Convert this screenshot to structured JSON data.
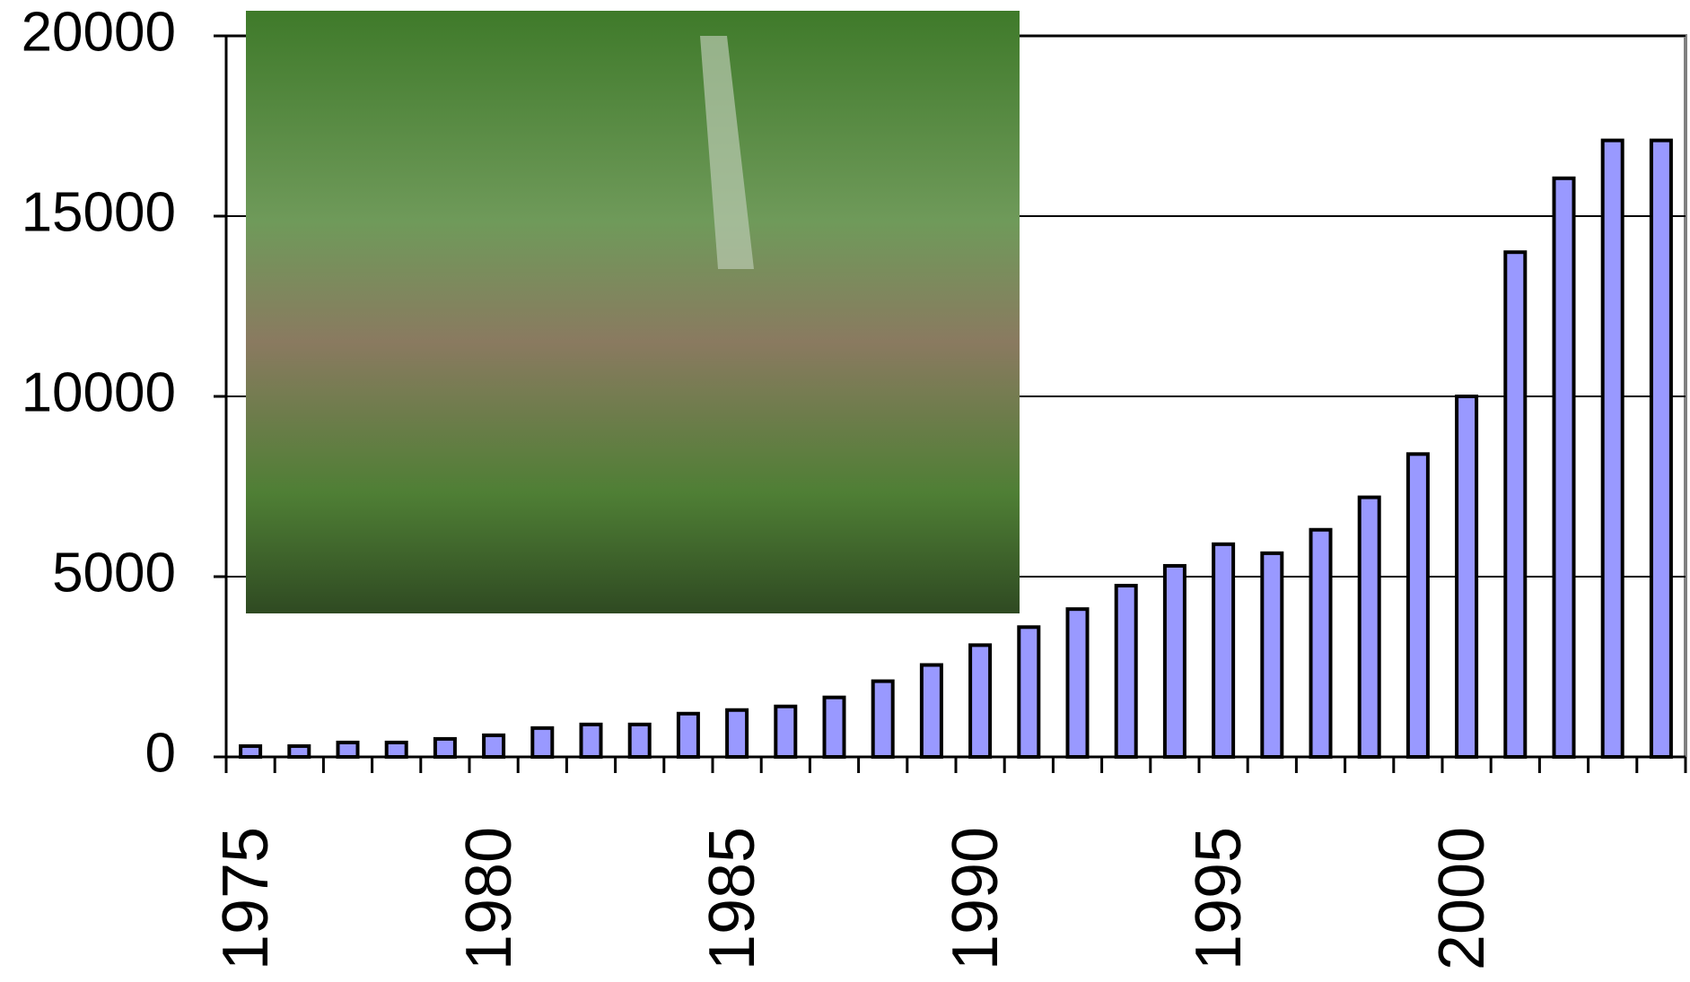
{
  "chart_data": {
    "type": "bar",
    "categories": [
      "1975",
      null,
      null,
      null,
      null,
      "1980",
      null,
      null,
      null,
      null,
      "1985",
      null,
      null,
      null,
      null,
      "1990",
      null,
      null,
      null,
      null,
      "1995",
      null,
      null,
      null,
      null,
      "2000",
      null,
      null,
      null,
      null
    ],
    "values": [
      300,
      300,
      400,
      400,
      500,
      600,
      800,
      900,
      900,
      1200,
      1300,
      1400,
      1650,
      2100,
      2550,
      3100,
      3600,
      4100,
      4750,
      5300,
      5900,
      5650,
      6300,
      7200,
      8400,
      10000,
      14000,
      16050,
      17100,
      17100
    ],
    "color": "#9999ff",
    "ylim": [
      0,
      20000
    ],
    "yticks": [
      0,
      5000,
      10000,
      15000,
      20000
    ],
    "grid": true
  }
}
